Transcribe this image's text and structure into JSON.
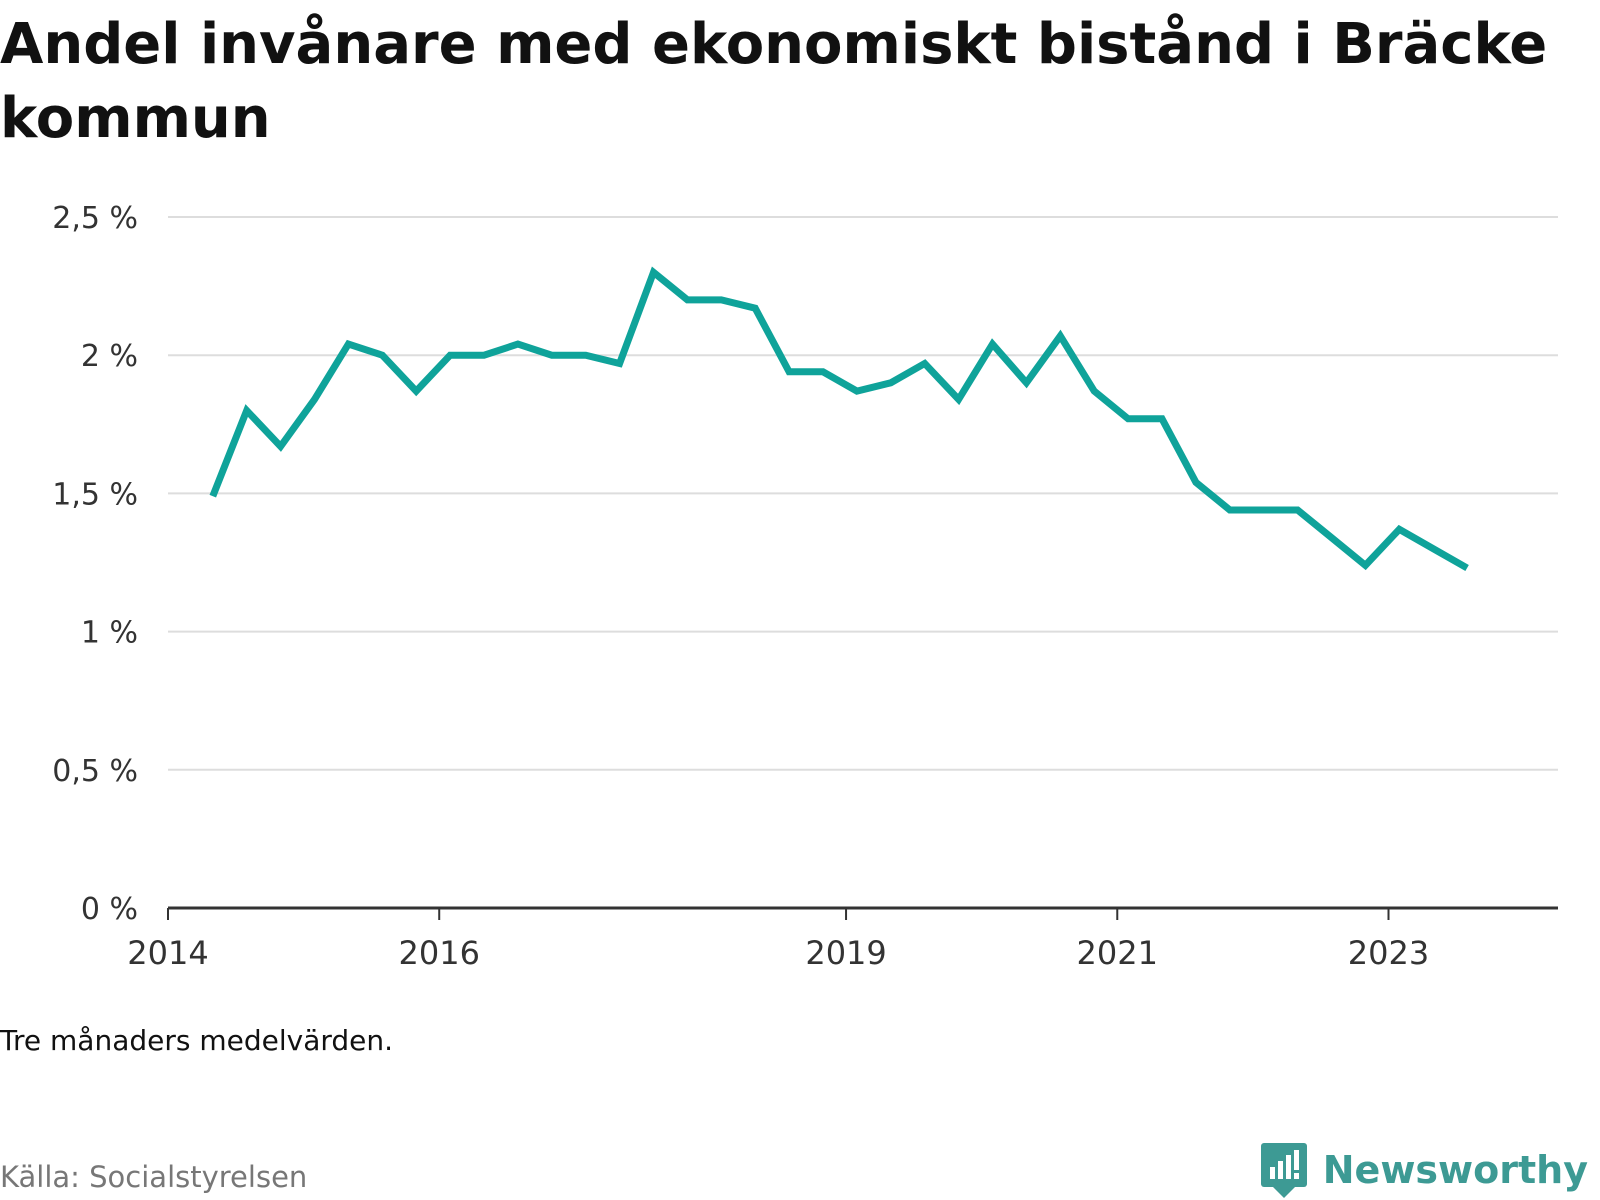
{
  "title": "Andel invånare med ekonomiskt bistånd i Bräcke kommun",
  "note": "Tre månaders medelvärden.",
  "source": "Källa: Socialstyrelsen",
  "brand": {
    "name": "Newsworthy",
    "icon": "newsworthy-logo-icon",
    "color": "#3d9a94"
  },
  "chart_data": {
    "type": "line",
    "title": "Andel invånare med ekonomiskt bistånd i Bräcke kommun",
    "xlabel": "",
    "ylabel": "",
    "ylim": [
      0,
      2.5
    ],
    "xlim": [
      2014.0,
      2024.25
    ],
    "grid": true,
    "legend": "none",
    "yticks": [
      {
        "value": 0,
        "label": "0 %"
      },
      {
        "value": 0.5,
        "label": "0,5 %"
      },
      {
        "value": 1,
        "label": "1 %"
      },
      {
        "value": 1.5,
        "label": "1,5 %"
      },
      {
        "value": 2,
        "label": "2 %"
      },
      {
        "value": 2.5,
        "label": "2,5 %"
      }
    ],
    "xticks": [
      {
        "value": 2014,
        "label": "2014"
      },
      {
        "value": 2016,
        "label": "2016"
      },
      {
        "value": 2019,
        "label": "2019"
      },
      {
        "value": 2021,
        "label": "2021"
      },
      {
        "value": 2023,
        "label": "2023"
      }
    ],
    "colors": {
      "line": "#0fa39a",
      "grid": "#dddddd",
      "axis": "#333333"
    },
    "series": [
      {
        "x": [
          2014.33,
          2014.58,
          2014.83,
          2015.08,
          2015.33,
          2015.58,
          2015.83,
          2016.08,
          2016.33,
          2016.58,
          2016.83,
          2017.08,
          2017.33,
          2017.58,
          2017.83,
          2018.08,
          2018.33,
          2018.58,
          2018.83,
          2019.08,
          2019.33,
          2019.58,
          2019.83,
          2020.08,
          2020.33,
          2020.58,
          2020.83,
          2021.08,
          2021.33,
          2021.58,
          2021.83,
          2022.08,
          2022.33,
          2022.58,
          2022.83,
          2023.08,
          2023.33,
          2023.58
        ],
        "values": [
          1.49,
          1.8,
          1.67,
          1.84,
          2.04,
          2.0,
          1.87,
          2.0,
          2.0,
          2.04,
          2.0,
          2.0,
          1.97,
          2.3,
          2.2,
          2.2,
          2.17,
          1.94,
          1.94,
          1.87,
          1.9,
          1.97,
          1.84,
          2.04,
          1.9,
          2.07,
          1.87,
          1.77,
          1.77,
          1.54,
          1.44,
          1.44,
          1.44,
          1.34,
          1.24,
          1.37,
          1.3,
          1.23
        ]
      }
    ]
  }
}
